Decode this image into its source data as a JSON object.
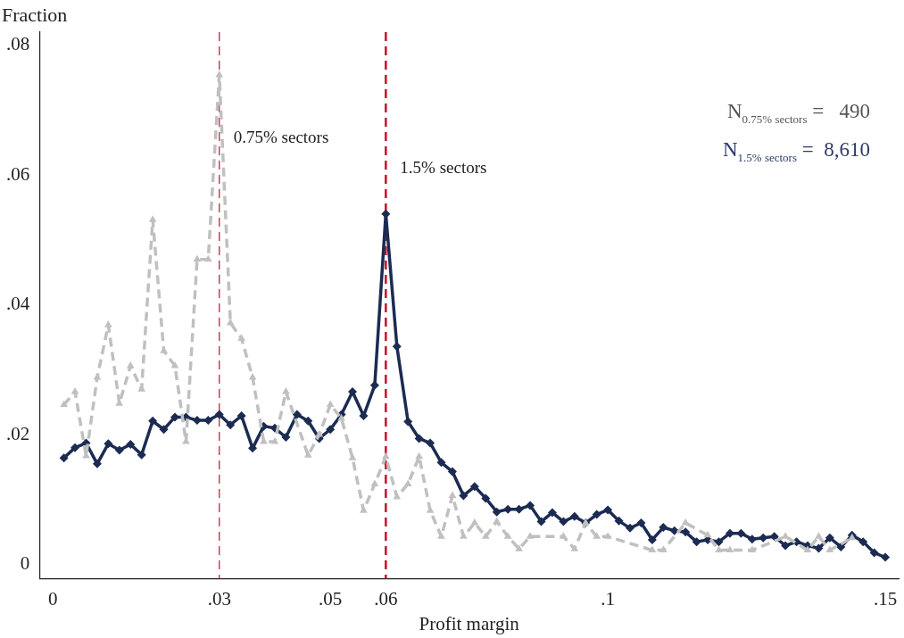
{
  "chart_data": {
    "type": "line",
    "xlabel": "Profit margin",
    "ylabel": "Fraction",
    "x": [
      0.002,
      0.004,
      0.006,
      0.008,
      0.01,
      0.012,
      0.014,
      0.016,
      0.018,
      0.02,
      0.022,
      0.024,
      0.026,
      0.028,
      0.03,
      0.032,
      0.034,
      0.036,
      0.038,
      0.04,
      0.042,
      0.044,
      0.046,
      0.048,
      0.05,
      0.052,
      0.054,
      0.056,
      0.058,
      0.06,
      0.062,
      0.064,
      0.066,
      0.068,
      0.07,
      0.072,
      0.074,
      0.076,
      0.078,
      0.08,
      0.082,
      0.084,
      0.086,
      0.088,
      0.09,
      0.092,
      0.094,
      0.096,
      0.098,
      0.1,
      0.102,
      0.104,
      0.106,
      0.108,
      0.11,
      0.112,
      0.114,
      0.116,
      0.118,
      0.12,
      0.122,
      0.124,
      0.126,
      0.128,
      0.13,
      0.132,
      0.134,
      0.136,
      0.138,
      0.14,
      0.142,
      0.144,
      0.146,
      0.148,
      0.15
    ],
    "series": [
      {
        "color": "#c0c0c0",
        "marker": "triangle",
        "line_style": "dashed",
        "values": [
          0.0246,
          0.0266,
          0.0167,
          0.0288,
          0.0369,
          0.0248,
          0.0306,
          0.027,
          0.0531,
          0.0329,
          0.0306,
          0.0189,
          0.047,
          0.047,
          0.0754,
          0.0372,
          0.0348,
          0.0288,
          0.0189,
          0.0189,
          0.0266,
          null,
          0.0168,
          0.02,
          0.0246,
          0.0225,
          0.0164,
          0.0083,
          0.0124,
          0.0166,
          0.0104,
          0.0124,
          0.0166,
          0.0083,
          0.0043,
          0.0106,
          0.0043,
          0.0064,
          0.0043,
          0.0066,
          0.0043,
          0.0024,
          0.0043,
          null,
          null,
          0.0043,
          0.0024,
          0.0064,
          0.0043,
          0.0043,
          null,
          null,
          null,
          0.0022,
          0.0022,
          null,
          0.0064,
          null,
          0.0045,
          0.0022,
          0.0022,
          null,
          0.0022,
          null,
          null,
          0.0043,
          null,
          0.0022,
          0.0043,
          0.0022,
          null,
          0.0041,
          null,
          null,
          null
        ]
      },
      {
        "color": "#1c2b52",
        "marker": "diamond",
        "line_style": "solid",
        "values": [
          0.0164,
          0.018,
          0.0187,
          0.0155,
          0.0186,
          0.0176,
          0.0185,
          0.0169,
          0.0221,
          0.0208,
          0.0227,
          0.0227,
          0.0222,
          0.0222,
          0.0231,
          0.0215,
          0.0229,
          0.0179,
          0.0213,
          0.021,
          0.0196,
          0.0231,
          0.0221,
          0.0194,
          0.0208,
          0.0231,
          0.0266,
          0.0229,
          0.0276,
          0.054,
          0.0336,
          0.022,
          0.0194,
          0.0187,
          0.0157,
          0.0143,
          0.0106,
          0.012,
          0.0102,
          0.0081,
          0.0085,
          0.0085,
          0.0091,
          0.0066,
          0.008,
          0.0066,
          0.0074,
          0.0064,
          0.0077,
          0.0084,
          0.0067,
          0.0056,
          0.0064,
          0.0038,
          0.0057,
          0.0052,
          0.005,
          0.0035,
          0.0038,
          0.0035,
          0.0048,
          0.0048,
          0.0039,
          0.0041,
          0.0043,
          0.0029,
          0.0035,
          0.0029,
          0.0025,
          0.0041,
          0.0027,
          0.0045,
          0.0035,
          0.0018,
          0.0011
        ]
      }
    ],
    "xlim": [
      -0.0024,
      0.1524
    ],
    "ylim": [
      -0.0022,
      0.082
    ],
    "xticks": [
      0,
      {
        "value": 0.03,
        "label": ".03"
      },
      {
        "value": 0.05,
        "label": ".05"
      },
      {
        "value": 0.06,
        "label": ".06"
      },
      {
        "value": 0.1,
        "label": ".1"
      },
      {
        "value": 0.15,
        "label": ".15"
      }
    ],
    "yticks": [
      0,
      {
        "value": 0.02,
        "label": ".02"
      },
      {
        "value": 0.04,
        "label": ".04"
      },
      {
        "value": 0.06,
        "label": ".06"
      },
      {
        "value": 0.08,
        "label": ".08"
      }
    ],
    "ref_lines": [
      {
        "axis": "x",
        "value": 0.03,
        "color": "#c8102e",
        "line_style": "dashed",
        "label": "0.75% sectors"
      },
      {
        "axis": "x",
        "value": 0.06,
        "color": "#c8102e",
        "line_style": "dashed",
        "label": "1.5% sectors"
      }
    ],
    "annotations": [
      "N$_{0.75% sectors}$ =   490",
      "N$_{1.5% sectors}$ =  8,610"
    ],
    "grid": false,
    "legend": false
  }
}
